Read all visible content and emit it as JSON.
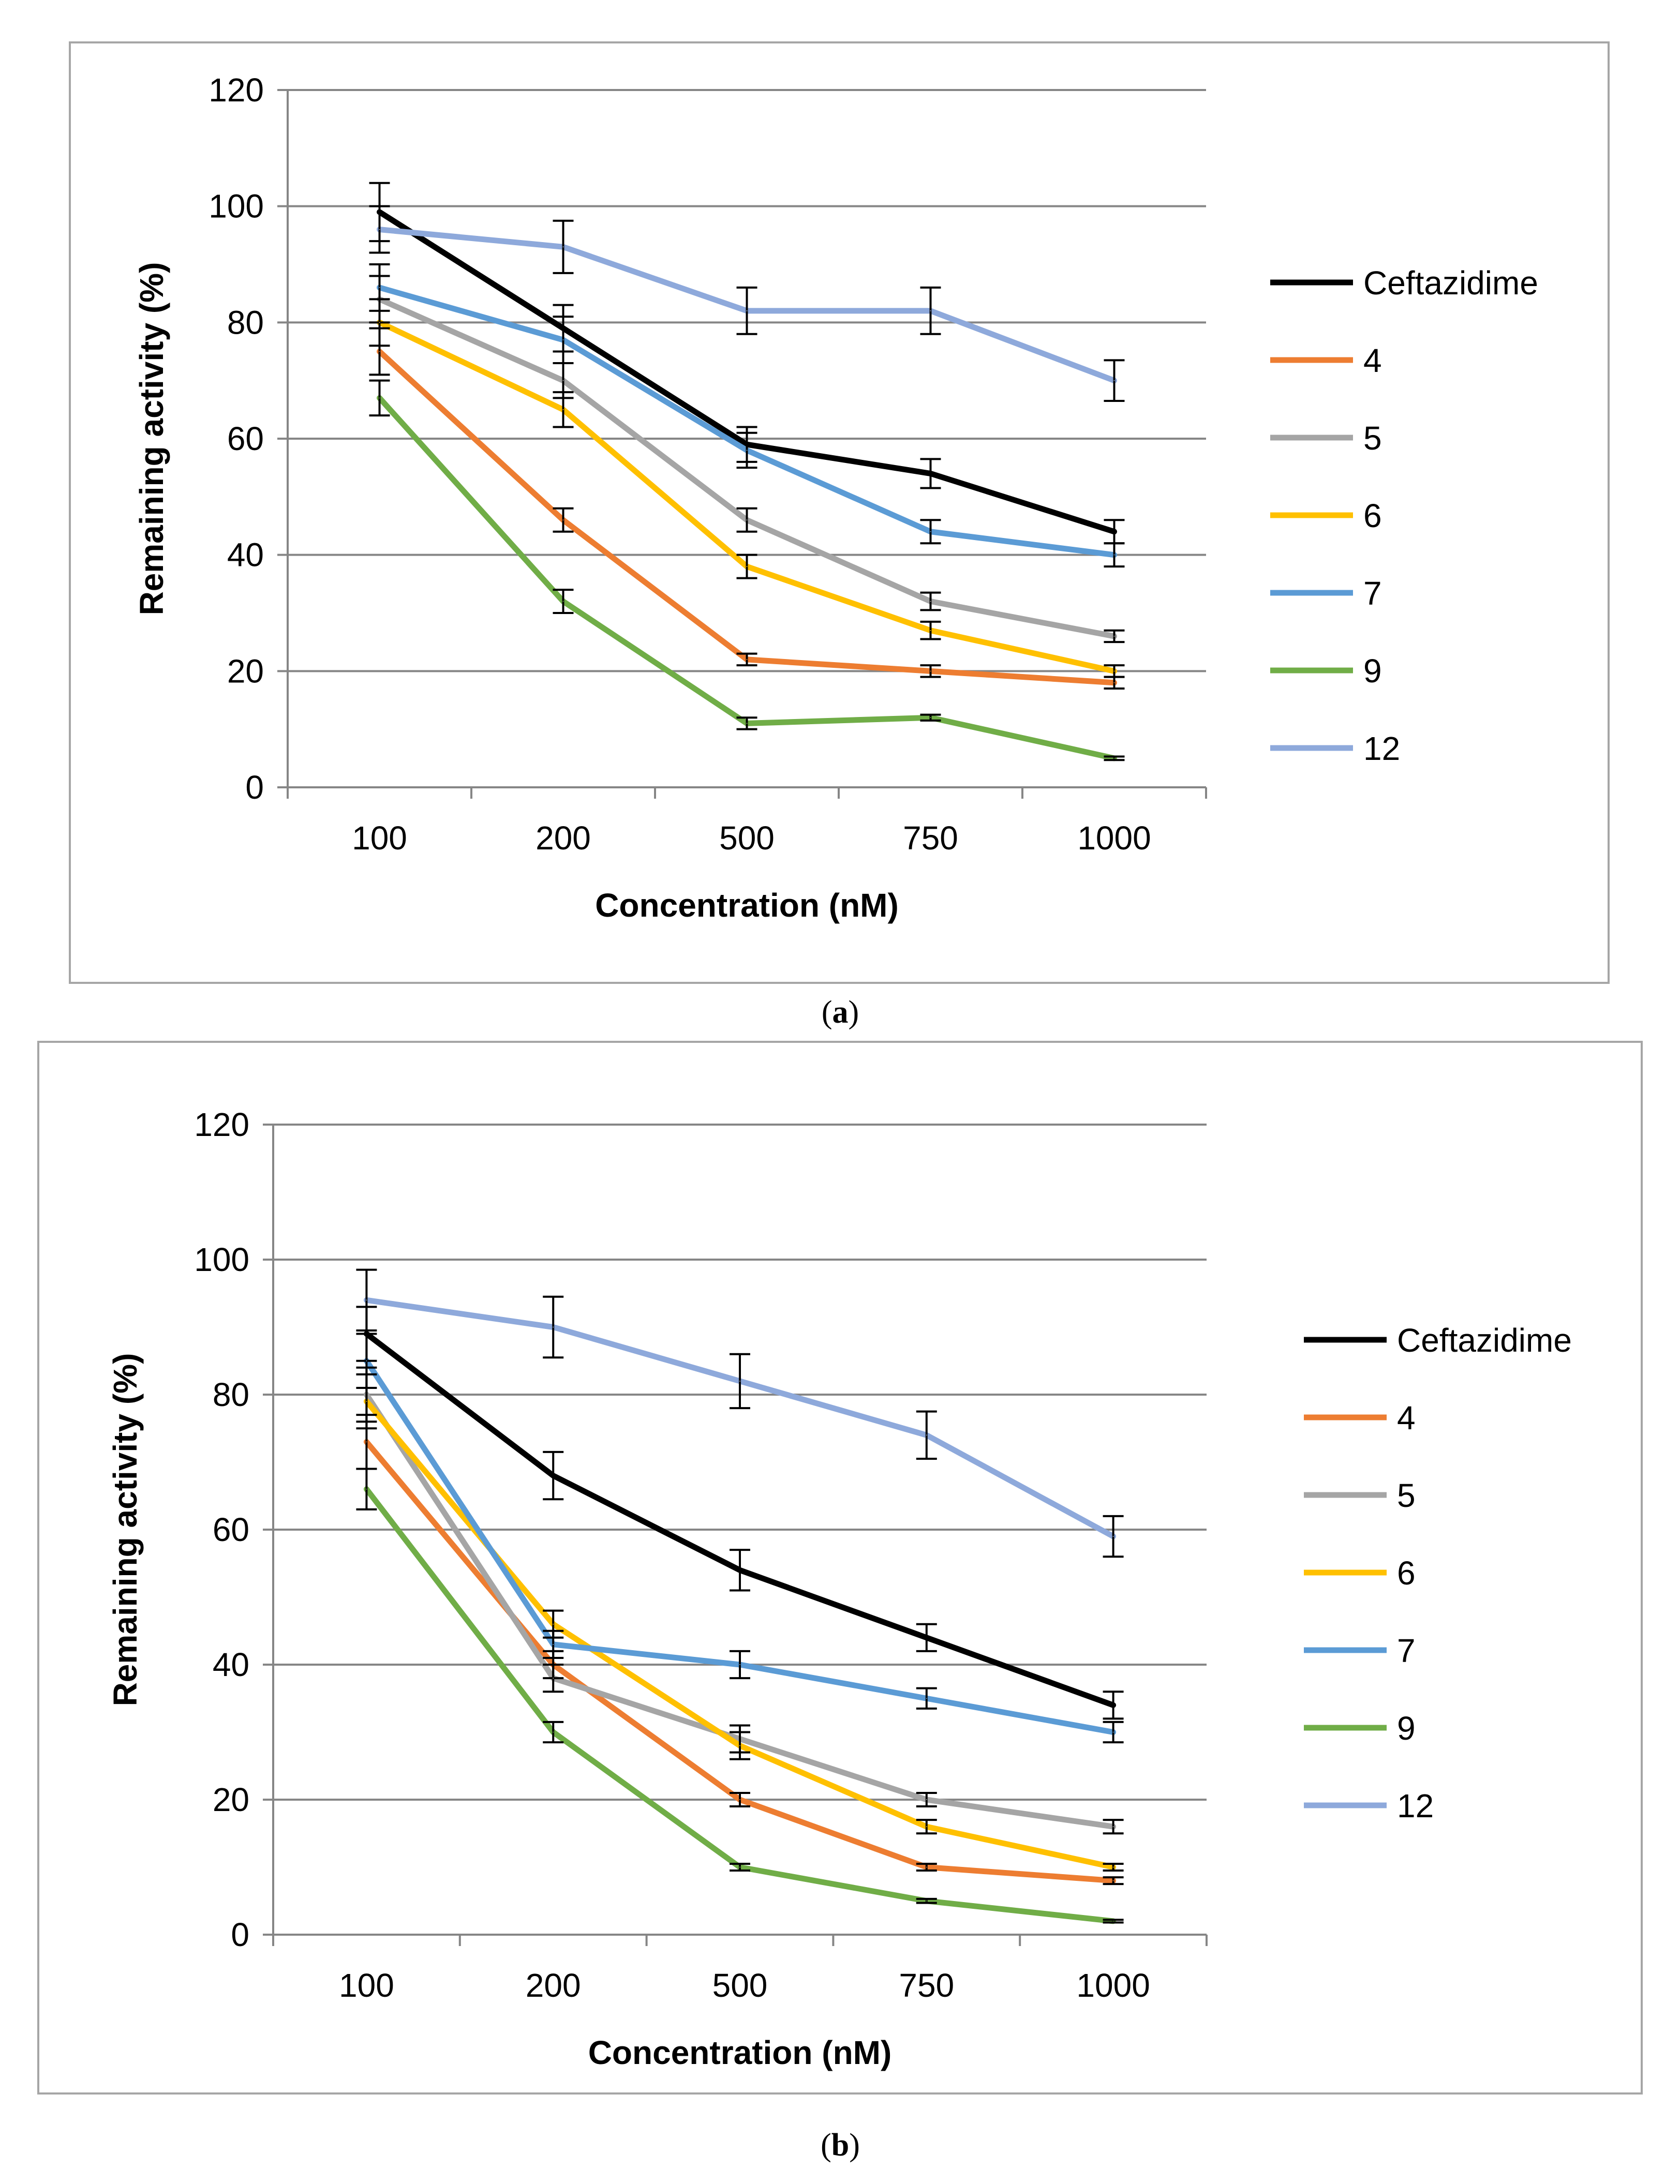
{
  "chart_data": [
    {
      "type": "line",
      "panel_label": "a",
      "xlabel": "Concentration (nM)",
      "ylabel": "Remaining activity (%)",
      "categories": [
        "100",
        "200",
        "500",
        "750",
        "1000"
      ],
      "ylim": [
        0,
        120
      ],
      "yticks": [
        0,
        20,
        40,
        60,
        80,
        100,
        120
      ],
      "grid": true,
      "legend": "right",
      "series": [
        {
          "name": "Ceftazidime",
          "color": "#000000",
          "values": [
            99,
            79,
            59,
            54,
            44
          ],
          "errors": [
            5,
            4,
            3,
            2.5,
            2
          ]
        },
        {
          "name": "4",
          "color": "#ED7D31",
          "values": [
            75,
            46,
            22,
            20,
            18
          ],
          "errors": [
            4,
            2,
            1,
            1,
            1
          ]
        },
        {
          "name": "5",
          "color": "#A5A5A5",
          "values": [
            84,
            70,
            46,
            32,
            26
          ],
          "errors": [
            4,
            3,
            2,
            1.5,
            1
          ]
        },
        {
          "name": "6",
          "color": "#FFC000",
          "values": [
            80,
            65,
            38,
            27,
            20
          ],
          "errors": [
            4,
            3,
            2,
            1.5,
            1
          ]
        },
        {
          "name": "7",
          "color": "#5B9BD5",
          "values": [
            86,
            77,
            58,
            44,
            40
          ],
          "errors": [
            4,
            4,
            3,
            2,
            2
          ]
        },
        {
          "name": "9",
          "color": "#70AD47",
          "values": [
            67,
            32,
            11,
            12,
            5
          ],
          "errors": [
            3,
            2,
            1,
            0.5,
            0.3
          ]
        },
        {
          "name": "12",
          "color": "#8EA9DB",
          "values": [
            96,
            93,
            82,
            82,
            70
          ],
          "errors": [
            4,
            4.5,
            4,
            4,
            3.5
          ]
        }
      ]
    },
    {
      "type": "line",
      "panel_label": "b",
      "xlabel": "Concentration (nM)",
      "ylabel": "Remaining activity (%)",
      "categories": [
        "100",
        "200",
        "500",
        "750",
        "1000"
      ],
      "ylim": [
        0,
        120
      ],
      "yticks": [
        0,
        20,
        40,
        60,
        80,
        100,
        120
      ],
      "grid": true,
      "legend": "right",
      "series": [
        {
          "name": "Ceftazidime",
          "color": "#000000",
          "values": [
            89,
            68,
            54,
            44,
            34
          ],
          "errors": [
            4,
            3.5,
            3,
            2,
            2
          ]
        },
        {
          "name": "4",
          "color": "#ED7D31",
          "values": [
            73,
            40,
            20,
            10,
            8
          ],
          "errors": [
            4,
            2,
            1,
            0.5,
            0.5
          ]
        },
        {
          "name": "5",
          "color": "#A5A5A5",
          "values": [
            80,
            38,
            29,
            20,
            16
          ],
          "errors": [
            4,
            2,
            2,
            1,
            1
          ]
        },
        {
          "name": "6",
          "color": "#FFC000",
          "values": [
            79,
            46,
            28,
            16,
            10
          ],
          "errors": [
            4,
            2,
            2,
            1,
            0.5
          ]
        },
        {
          "name": "7",
          "color": "#5B9BD5",
          "values": [
            85,
            43,
            40,
            35,
            30
          ],
          "errors": [
            4,
            2,
            2,
            1.5,
            1.5
          ]
        },
        {
          "name": "9",
          "color": "#70AD47",
          "values": [
            66,
            30,
            10,
            5,
            2
          ],
          "errors": [
            3,
            1.5,
            0.5,
            0.3,
            0.2
          ]
        },
        {
          "name": "12",
          "color": "#8EA9DB",
          "values": [
            94,
            90,
            82,
            74,
            59
          ],
          "errors": [
            4.5,
            4.5,
            4,
            3.5,
            3
          ]
        }
      ]
    }
  ]
}
